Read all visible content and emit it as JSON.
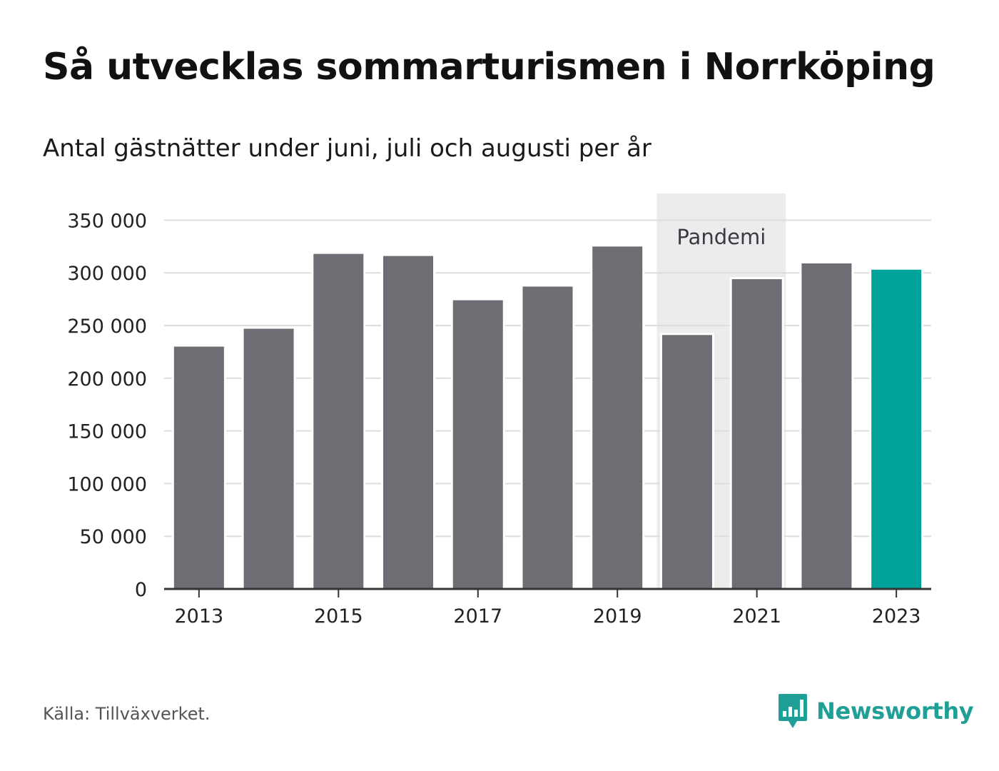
{
  "title": "Så utvecklas sommarturismen i Norrköping",
  "subtitle": "Antal gästnätter under juni, juli och augusti per år",
  "source": "Källa: Tillväxverket.",
  "logo": {
    "text": "Newsworthy",
    "icon": "chart-speech-bubble-icon",
    "color": "#1f9f96"
  },
  "colors": {
    "bar": "#6e6d74",
    "highlight": "#00a39a",
    "band": "#ececec",
    "grid": "#dddddd",
    "axis": "#333333"
  },
  "chart_data": {
    "type": "bar",
    "categories": [
      "2013",
      "2014",
      "2015",
      "2016",
      "2017",
      "2018",
      "2019",
      "2020",
      "2021",
      "2022",
      "2023"
    ],
    "values": [
      231000,
      248000,
      319000,
      317000,
      275000,
      288000,
      326000,
      242000,
      295000,
      310000,
      304000
    ],
    "highlight_category": "2023",
    "x_tick_labels": [
      "2013",
      "2015",
      "2017",
      "2019",
      "2021",
      "2023"
    ],
    "y_ticks": [
      0,
      50000,
      100000,
      150000,
      200000,
      250000,
      300000,
      350000
    ],
    "y_tick_labels": [
      "0",
      "50 000",
      "100 000",
      "150 000",
      "200 000",
      "250 000",
      "300 000",
      "350 000"
    ],
    "ylim": [
      0,
      375000
    ],
    "grid": true,
    "shaded_band": {
      "label": "Pandemi",
      "from": "2020",
      "to": "2021"
    }
  }
}
